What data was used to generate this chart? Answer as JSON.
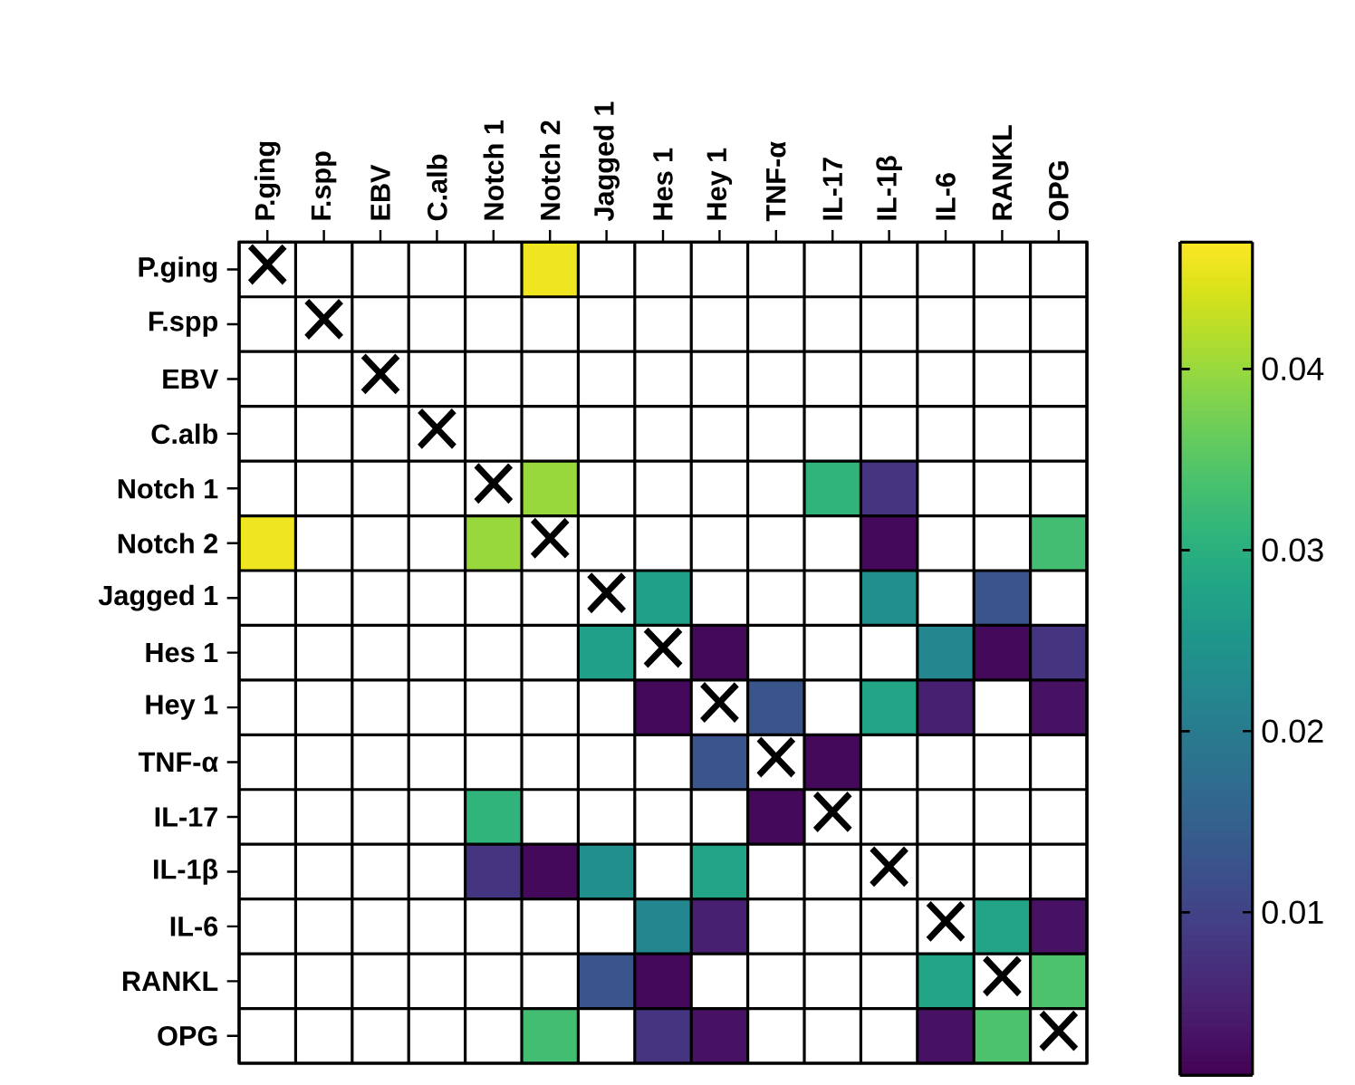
{
  "chart_data": {
    "type": "heatmap",
    "categories": [
      "P.ging",
      "F.spp",
      "EBV",
      "C.alb",
      "Notch 1",
      "Notch 2",
      "Jagged 1",
      "Hes 1",
      "Hey 1",
      "TNF-α",
      "IL-17",
      "IL-1β",
      "IL-6",
      "RANKL",
      "OPG"
    ],
    "y_categories": [
      "P.ging",
      "F.spp",
      "EBV",
      "C.alb",
      "Notch 1",
      "Notch 2",
      "Jagged 1",
      "Hes 1",
      "Hey 1",
      "TNF-α",
      "IL-17",
      "IL-1β",
      "IL-6",
      "RANKL",
      "OPG"
    ],
    "cells": [
      [
        null,
        null,
        null,
        null,
        null,
        0.046,
        null,
        null,
        null,
        null,
        null,
        null,
        null,
        null,
        null
      ],
      [
        null,
        null,
        null,
        null,
        null,
        null,
        null,
        null,
        null,
        null,
        null,
        null,
        null,
        null,
        null
      ],
      [
        null,
        null,
        null,
        null,
        null,
        null,
        null,
        null,
        null,
        null,
        null,
        null,
        null,
        null,
        null
      ],
      [
        null,
        null,
        null,
        null,
        null,
        null,
        null,
        null,
        null,
        null,
        null,
        null,
        null,
        null,
        null
      ],
      [
        null,
        null,
        null,
        null,
        null,
        0.04,
        null,
        null,
        null,
        null,
        0.031,
        0.008,
        null,
        null,
        null
      ],
      [
        0.046,
        null,
        null,
        null,
        0.04,
        null,
        null,
        null,
        null,
        null,
        null,
        0.002,
        null,
        null,
        0.033
      ],
      [
        null,
        null,
        null,
        null,
        null,
        null,
        null,
        0.027,
        null,
        null,
        null,
        0.024,
        null,
        0.013,
        null
      ],
      [
        null,
        null,
        null,
        null,
        null,
        null,
        0.027,
        null,
        0.002,
        null,
        null,
        null,
        0.022,
        0.002,
        0.008
      ],
      [
        null,
        null,
        null,
        null,
        null,
        null,
        null,
        0.002,
        null,
        0.013,
        null,
        0.028,
        0.005,
        null,
        0.003
      ],
      [
        null,
        null,
        null,
        null,
        null,
        null,
        null,
        null,
        0.013,
        null,
        0.002,
        null,
        null,
        null,
        null
      ],
      [
        null,
        null,
        null,
        null,
        0.031,
        null,
        null,
        null,
        null,
        0.002,
        null,
        null,
        null,
        null,
        null
      ],
      [
        null,
        null,
        null,
        null,
        0.008,
        0.002,
        0.024,
        null,
        0.028,
        null,
        null,
        null,
        null,
        null,
        null
      ],
      [
        null,
        null,
        null,
        null,
        null,
        null,
        null,
        0.022,
        0.005,
        null,
        null,
        null,
        null,
        0.028,
        0.003
      ],
      [
        null,
        null,
        null,
        null,
        null,
        null,
        0.013,
        0.002,
        null,
        null,
        null,
        null,
        0.028,
        null,
        0.034
      ],
      [
        null,
        null,
        null,
        null,
        null,
        0.033,
        null,
        0.008,
        0.003,
        null,
        null,
        null,
        0.003,
        0.034,
        null
      ]
    ],
    "cell_labels": [
      [
        "×",
        null,
        null,
        null,
        null,
        null,
        null,
        null,
        null,
        null,
        null,
        null,
        null,
        null,
        null
      ],
      [
        null,
        "×",
        null,
        null,
        null,
        null,
        null,
        null,
        null,
        null,
        null,
        null,
        null,
        null,
        null
      ],
      [
        null,
        null,
        "×",
        null,
        null,
        null,
        null,
        null,
        null,
        null,
        null,
        null,
        null,
        null,
        null
      ],
      [
        null,
        null,
        null,
        "×",
        null,
        null,
        null,
        null,
        null,
        null,
        null,
        null,
        null,
        null,
        null
      ],
      [
        null,
        null,
        null,
        null,
        "×",
        null,
        null,
        null,
        null,
        null,
        null,
        null,
        null,
        null,
        null
      ],
      [
        null,
        null,
        null,
        null,
        null,
        "×",
        null,
        null,
        null,
        null,
        null,
        null,
        null,
        null,
        null
      ],
      [
        null,
        null,
        null,
        null,
        null,
        null,
        "×",
        null,
        null,
        null,
        null,
        null,
        null,
        null,
        null
      ],
      [
        null,
        null,
        null,
        null,
        null,
        null,
        null,
        "×",
        null,
        null,
        null,
        null,
        null,
        null,
        null
      ],
      [
        null,
        null,
        null,
        null,
        null,
        null,
        null,
        null,
        "×",
        null,
        null,
        null,
        null,
        null,
        null
      ],
      [
        null,
        null,
        null,
        null,
        null,
        null,
        null,
        null,
        null,
        "×",
        null,
        null,
        null,
        null,
        null
      ],
      [
        null,
        null,
        null,
        null,
        null,
        null,
        null,
        null,
        null,
        null,
        "×",
        null,
        null,
        null,
        null
      ],
      [
        null,
        null,
        null,
        null,
        null,
        null,
        null,
        null,
        null,
        null,
        null,
        "×",
        null,
        null,
        null
      ],
      [
        null,
        null,
        null,
        null,
        null,
        null,
        null,
        null,
        null,
        null,
        null,
        null,
        "×",
        null,
        null
      ],
      [
        null,
        null,
        null,
        null,
        null,
        null,
        null,
        null,
        null,
        null,
        null,
        null,
        null,
        "×",
        null
      ],
      [
        null,
        null,
        null,
        null,
        null,
        null,
        null,
        null,
        null,
        null,
        null,
        null,
        null,
        null,
        "×"
      ]
    ],
    "grid": true,
    "clim": [
      0.001,
      0.047
    ],
    "cticks": [
      0.01,
      0.02,
      0.03,
      0.04
    ]
  }
}
